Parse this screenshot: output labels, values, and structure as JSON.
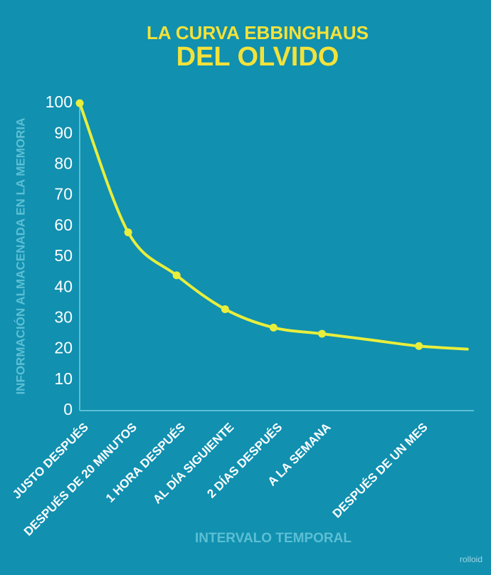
{
  "chart_data": {
    "type": "line",
    "title": "LA CURVA EBBINGHAUS",
    "subtitle": "DEL OLVIDO",
    "y_label": "INFORMACIÓN ALMACENADA EN LA MEMORIA",
    "x_label": "INTERVALO TEMPORAL",
    "watermark": "rolloid",
    "categories": [
      "JUSTO DESPUÉS",
      "DESPUÉS DE 20 MINUTOS",
      "1 HORA DESPUÉS",
      "AL DÍA SIGUIENTE",
      "2 DÍAS DESPUÉS",
      "A LA SEMANA",
      null,
      "DESPUÉS DE UN MES",
      null
    ],
    "values": [
      100,
      58,
      44,
      33,
      27,
      25,
      23,
      21,
      20
    ],
    "color": "#e8ee3c",
    "ylim": [
      0,
      100
    ],
    "yticks": [
      0,
      10,
      20,
      30,
      40,
      50,
      60,
      70,
      80,
      90,
      100
    ],
    "grid": false
  }
}
